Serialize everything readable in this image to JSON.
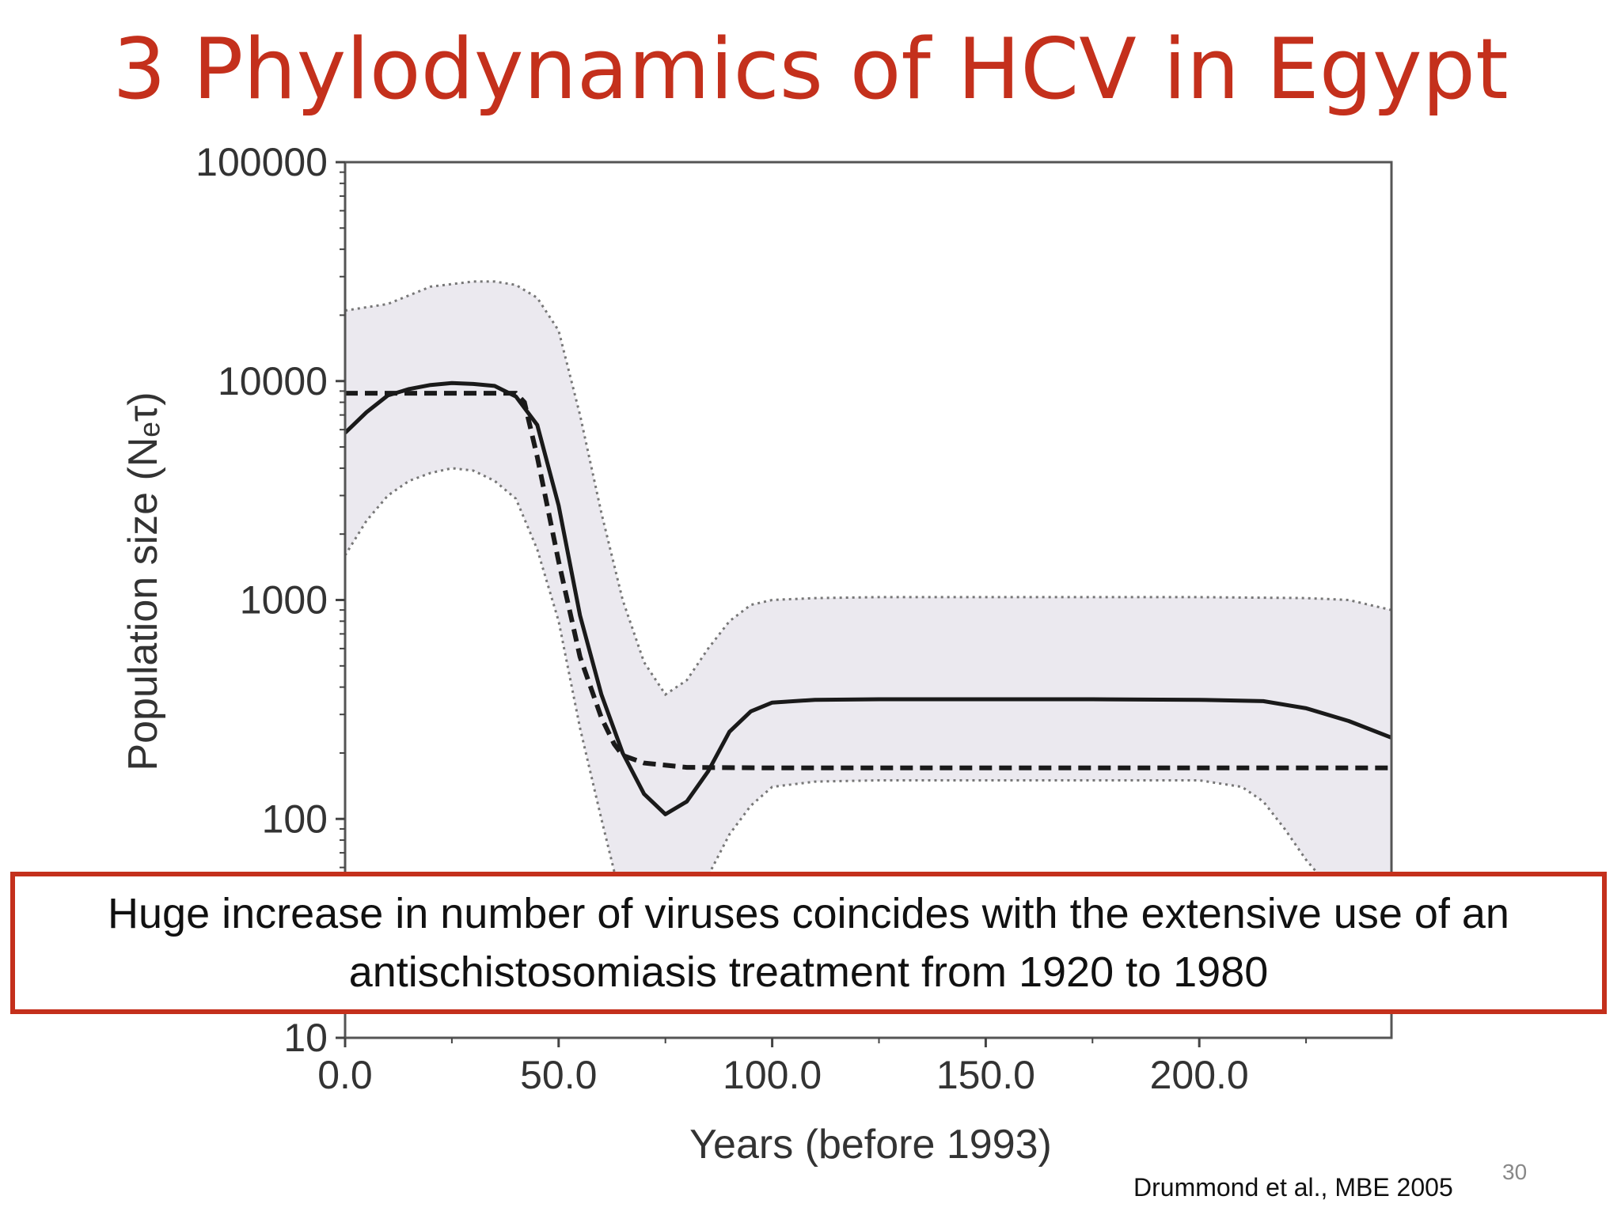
{
  "slide": {
    "title": "3 Phylodynamics of HCV in Egypt",
    "callout": "Huge increase in number of viruses coincides with the extensive use of an antischistosomiasis treatment from 1920 to 1980",
    "citation": "Drummond et al., MBE 2005",
    "page_number": "30",
    "accent_color": "#c4301c"
  },
  "chart_data": {
    "type": "line",
    "title": "",
    "xlabel": "Years (before 1993)",
    "ylabel": "Population size (Nₑτ)",
    "xlim": [
      0,
      245
    ],
    "ylim": [
      10,
      100000
    ],
    "y_scale": "log",
    "x_ticks": [
      "0.0",
      "50.0",
      "100.0",
      "150.0",
      "200.0"
    ],
    "x_tick_values": [
      0,
      50,
      100,
      150,
      200
    ],
    "y_ticks": [
      "10",
      "100",
      "1000",
      "10000",
      "100000"
    ],
    "y_tick_values": [
      10,
      100,
      1000,
      10000,
      100000
    ],
    "band_color": "#ebe9ef",
    "series": [
      {
        "style": "upper-95-hpd",
        "x": [
          0,
          10,
          20,
          30,
          35,
          40,
          45,
          50,
          55,
          60,
          65,
          70,
          75,
          80,
          85,
          90,
          95,
          100,
          110,
          125,
          150,
          175,
          200,
          225,
          235,
          245
        ],
        "y": [
          21000,
          22500,
          27000,
          28500,
          28500,
          27500,
          24000,
          17000,
          7000,
          2500,
          1000,
          520,
          370,
          430,
          600,
          800,
          950,
          1000,
          1020,
          1030,
          1030,
          1030,
          1030,
          1020,
          1000,
          900
        ]
      },
      {
        "style": "median",
        "x": [
          0,
          5,
          10,
          15,
          20,
          25,
          30,
          35,
          40,
          45,
          50,
          55,
          60,
          65,
          70,
          75,
          80,
          85,
          90,
          95,
          100,
          110,
          125,
          150,
          175,
          200,
          215,
          225,
          235,
          245
        ],
        "y": [
          5800,
          7200,
          8600,
          9200,
          9600,
          9800,
          9700,
          9500,
          8500,
          6300,
          2700,
          850,
          370,
          200,
          130,
          105,
          120,
          165,
          250,
          310,
          340,
          350,
          352,
          352,
          352,
          350,
          345,
          320,
          280,
          235
        ]
      },
      {
        "style": "constant-model",
        "x": [
          0,
          40,
          42,
          45,
          50,
          55,
          60,
          63,
          65,
          70,
          80,
          100,
          150,
          200,
          245
        ],
        "y": [
          8800,
          8800,
          8000,
          4500,
          1500,
          550,
          290,
          220,
          195,
          180,
          172,
          171,
          171,
          171,
          171
        ]
      },
      {
        "style": "lower-95-hpd",
        "x": [
          0,
          5,
          10,
          15,
          20,
          25,
          30,
          35,
          40,
          45,
          50,
          55,
          60,
          65,
          70,
          75,
          80,
          85,
          90,
          95,
          100,
          110,
          125,
          150,
          175,
          200,
          210,
          215,
          220,
          225,
          230,
          235,
          240,
          245
        ],
        "y": [
          1600,
          2300,
          3000,
          3500,
          3800,
          4000,
          3900,
          3500,
          2900,
          1700,
          800,
          260,
          100,
          40,
          25,
          25,
          35,
          55,
          85,
          115,
          140,
          148,
          150,
          150,
          150,
          150,
          140,
          120,
          90,
          65,
          50,
          42,
          38,
          35
        ]
      }
    ]
  }
}
